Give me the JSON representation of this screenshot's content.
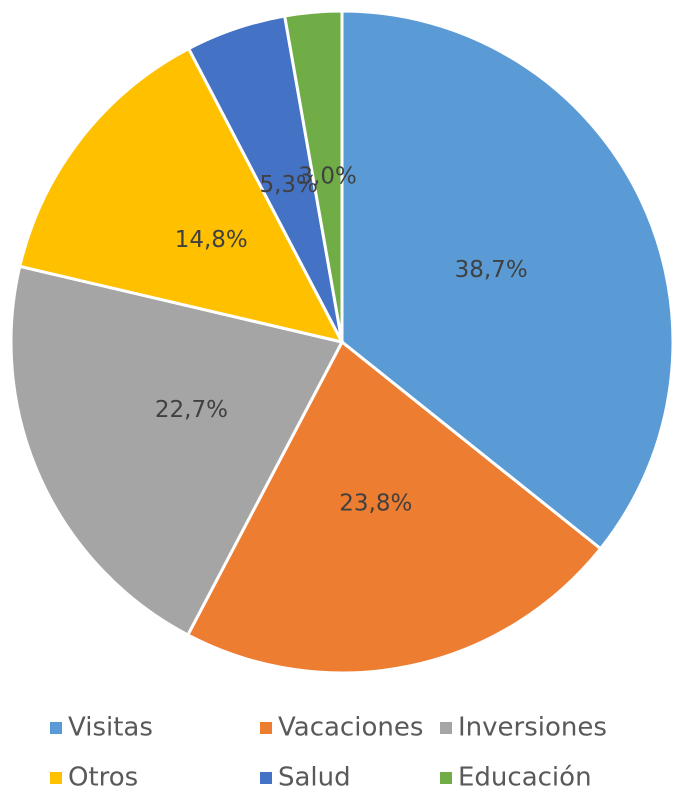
{
  "chart_data": {
    "type": "pie",
    "categories": [
      "Visitas",
      "Vacaciones",
      "Inversiones",
      "Otros",
      "Salud",
      "Educación"
    ],
    "values": [
      38.7,
      23.8,
      22.7,
      14.8,
      5.3,
      3.0
    ],
    "value_labels": [
      "38,7%",
      "23,8%",
      "22,7%",
      "14,8%",
      "5,3%",
      "3,0%"
    ],
    "colors": [
      "#5b9bd5",
      "#ed7d31",
      "#a5a5a5",
      "#ffc000",
      "#4472c4",
      "#70ad47"
    ],
    "legend": "bottom"
  }
}
